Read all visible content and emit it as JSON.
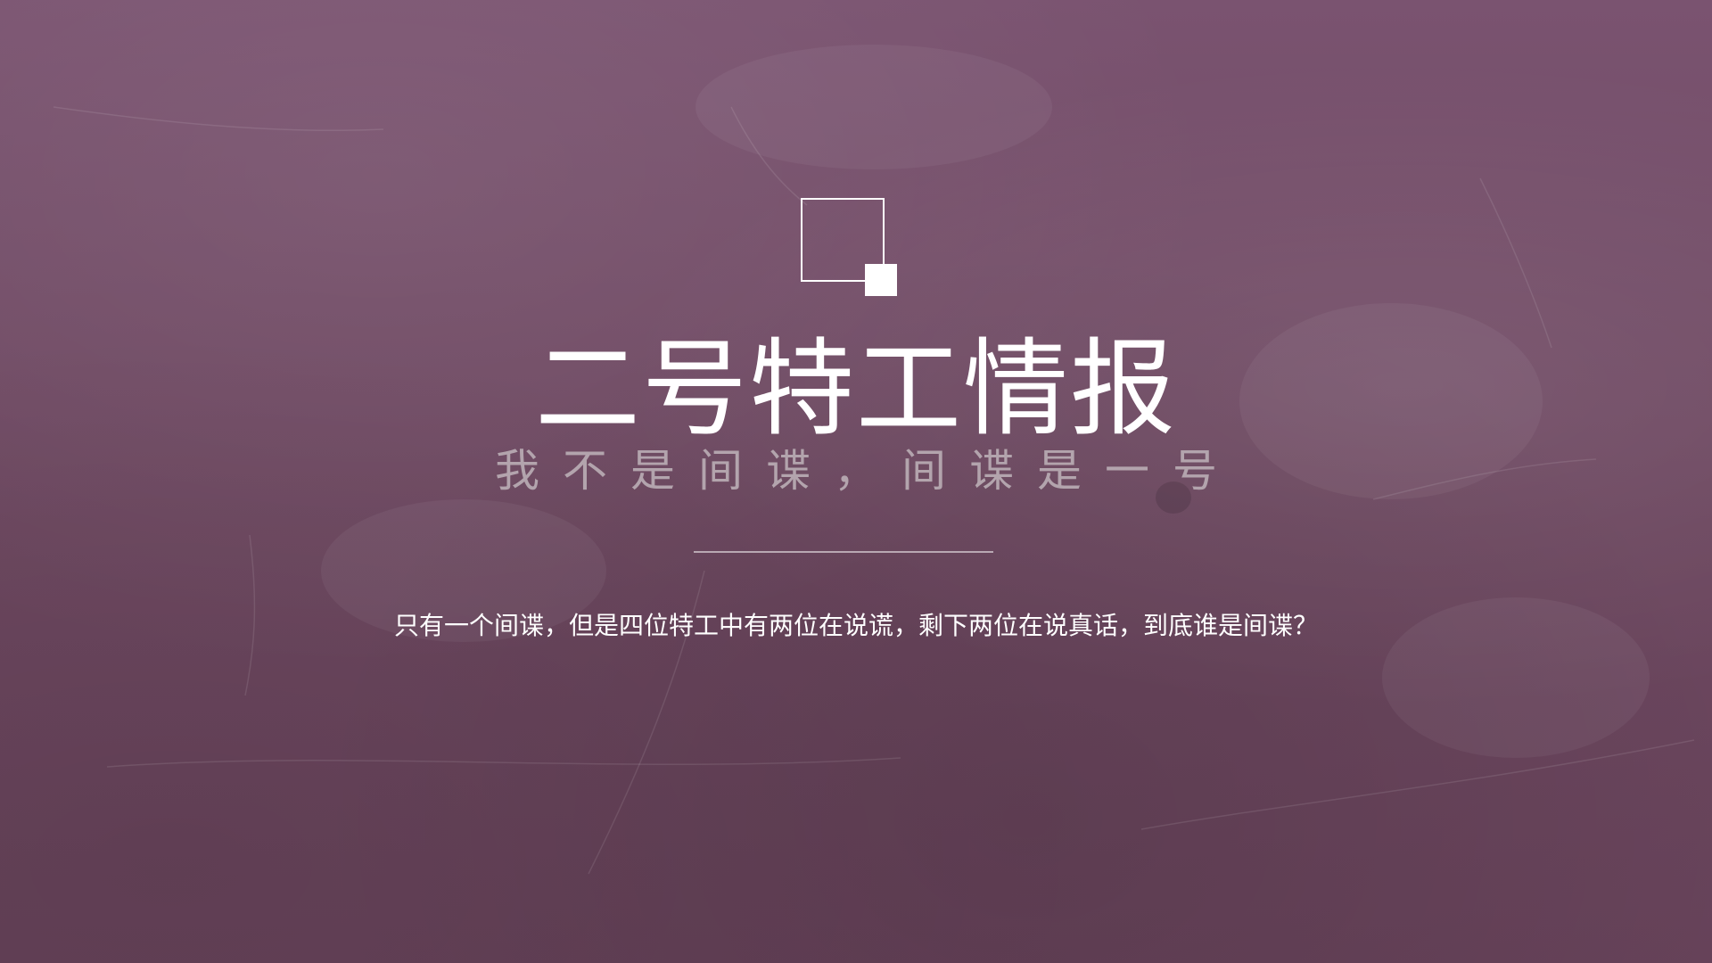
{
  "slide": {
    "title": "二号特工情报",
    "subtitle": "我不是间谍，间谍是一号",
    "description": "只有一个间谍，但是四位特工中有两位在说谎，剩下两位在说真话，到底谁是间谍？"
  },
  "colors": {
    "background": "#6e4a62",
    "title": "#ffffff",
    "subtitle": "#b3a4ad",
    "divider": "#b9a8b3"
  },
  "icons": {
    "logo": "square-outline-with-filled-corner-square"
  }
}
